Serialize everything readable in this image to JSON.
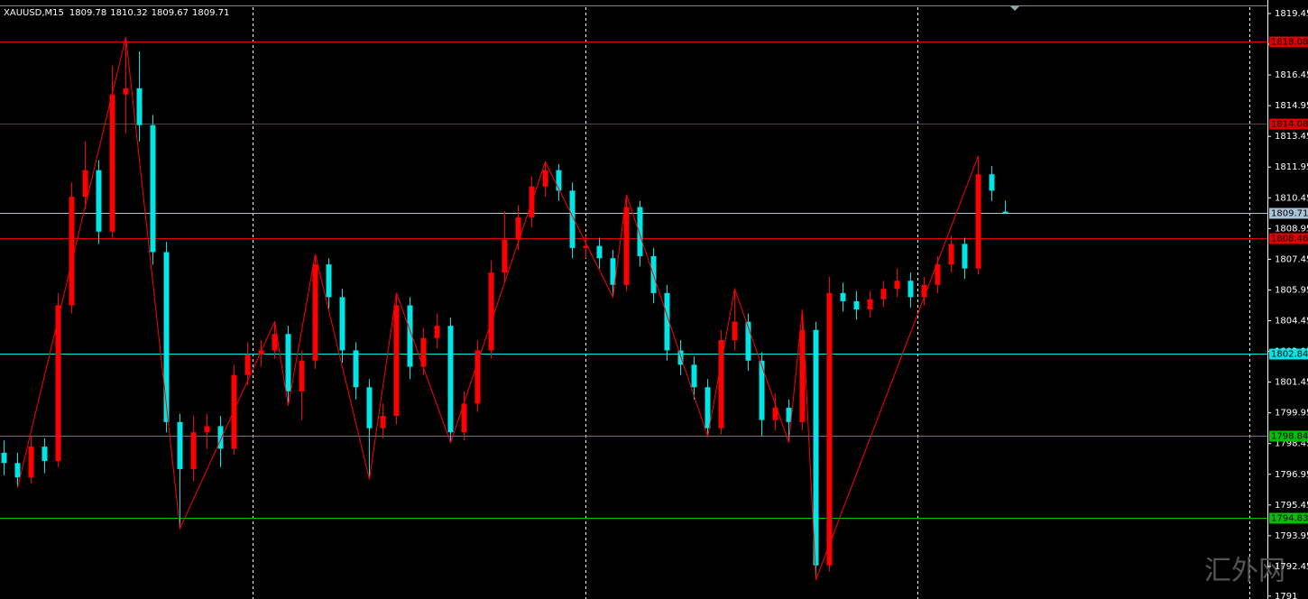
{
  "chart_data": {
    "type": "candlestick",
    "symbol": "XAUUSD,M15",
    "ylim": [
      1790.86,
      1820.11
    ],
    "yticks": [
      1819.45,
      1817.95,
      1816.45,
      1814.95,
      1813.45,
      1811.95,
      1810.45,
      1808.95,
      1807.45,
      1805.95,
      1804.45,
      1802.95,
      1801.45,
      1799.95,
      1798.45,
      1796.95,
      1795.45,
      1793.95,
      1792.45,
      1791.0
    ],
    "up_color": "#ff0000",
    "down_color": "#00e5e5",
    "ohlc": [
      [
        1798.0,
        1798.6,
        1796.9,
        1797.5
      ],
      [
        1797.5,
        1798.0,
        1796.3,
        1796.8
      ],
      [
        1796.8,
        1798.8,
        1796.5,
        1798.3
      ],
      [
        1798.3,
        1798.7,
        1797.0,
        1797.6
      ],
      [
        1797.6,
        1805.8,
        1797.3,
        1805.2
      ],
      [
        1805.2,
        1811.2,
        1804.8,
        1810.5
      ],
      [
        1810.5,
        1813.2,
        1809.9,
        1811.8
      ],
      [
        1811.8,
        1812.3,
        1808.2,
        1808.8
      ],
      [
        1808.8,
        1816.9,
        1808.5,
        1815.5
      ],
      [
        1815.5,
        1818.3,
        1813.6,
        1815.8
      ],
      [
        1815.8,
        1817.6,
        1813.2,
        1814.0
      ],
      [
        1814.0,
        1814.5,
        1807.2,
        1807.8
      ],
      [
        1807.8,
        1808.3,
        1799.0,
        1799.5
      ],
      [
        1799.5,
        1799.9,
        1794.3,
        1797.2
      ],
      [
        1797.2,
        1799.8,
        1796.6,
        1799.0
      ],
      [
        1799.0,
        1799.9,
        1798.2,
        1799.3
      ],
      [
        1799.3,
        1799.8,
        1797.3,
        1798.2
      ],
      [
        1798.2,
        1802.3,
        1797.9,
        1801.8
      ],
      [
        1801.8,
        1803.4,
        1801.3,
        1802.8
      ],
      [
        1802.8,
        1803.5,
        1802.2,
        1803.0
      ],
      [
        1803.0,
        1804.4,
        1802.6,
        1803.8
      ],
      [
        1803.8,
        1804.2,
        1800.3,
        1801.0
      ],
      [
        1801.0,
        1803.0,
        1799.6,
        1802.5
      ],
      [
        1802.5,
        1807.7,
        1802.1,
        1807.2
      ],
      [
        1807.2,
        1807.5,
        1805.0,
        1805.6
      ],
      [
        1805.6,
        1806.0,
        1802.4,
        1803.0
      ],
      [
        1803.0,
        1803.4,
        1800.6,
        1801.2
      ],
      [
        1801.2,
        1801.6,
        1796.7,
        1799.2
      ],
      [
        1799.2,
        1800.4,
        1798.7,
        1799.8
      ],
      [
        1799.8,
        1805.8,
        1799.4,
        1805.2
      ],
      [
        1805.2,
        1805.6,
        1801.6,
        1802.2
      ],
      [
        1802.2,
        1804.1,
        1801.8,
        1803.6
      ],
      [
        1803.6,
        1804.8,
        1803.1,
        1804.2
      ],
      [
        1804.2,
        1804.6,
        1798.5,
        1799.0
      ],
      [
        1799.0,
        1801.0,
        1798.6,
        1800.4
      ],
      [
        1800.4,
        1803.5,
        1800.0,
        1803.0
      ],
      [
        1803.0,
        1807.4,
        1802.6,
        1806.8
      ],
      [
        1806.8,
        1809.8,
        1806.3,
        1808.4
      ],
      [
        1808.4,
        1810.1,
        1807.9,
        1809.5
      ],
      [
        1809.5,
        1811.5,
        1809.0,
        1811.0
      ],
      [
        1811.0,
        1812.2,
        1810.5,
        1811.8
      ],
      [
        1811.8,
        1812.1,
        1810.3,
        1810.8
      ],
      [
        1810.8,
        1811.2,
        1807.5,
        1808.0
      ],
      [
        1808.0,
        1808.6,
        1807.5,
        1808.1
      ],
      [
        1808.1,
        1808.5,
        1807.0,
        1807.5
      ],
      [
        1807.5,
        1807.9,
        1805.6,
        1806.2
      ],
      [
        1806.2,
        1810.6,
        1805.9,
        1810.0
      ],
      [
        1810.0,
        1810.3,
        1807.1,
        1807.6
      ],
      [
        1807.6,
        1808.0,
        1805.3,
        1805.8
      ],
      [
        1805.8,
        1806.2,
        1802.5,
        1803.0
      ],
      [
        1803.0,
        1803.5,
        1801.8,
        1802.3
      ],
      [
        1802.3,
        1802.7,
        1800.6,
        1801.2
      ],
      [
        1801.2,
        1801.6,
        1798.8,
        1799.2
      ],
      [
        1799.2,
        1804.0,
        1798.9,
        1803.5
      ],
      [
        1803.5,
        1806.0,
        1803.0,
        1804.4
      ],
      [
        1804.4,
        1804.8,
        1802.0,
        1802.5
      ],
      [
        1802.5,
        1802.9,
        1798.8,
        1799.6
      ],
      [
        1799.6,
        1800.9,
        1799.1,
        1800.2
      ],
      [
        1800.2,
        1800.6,
        1798.5,
        1799.5
      ],
      [
        1799.5,
        1805.0,
        1799.1,
        1804.0
      ],
      [
        1804.0,
        1804.4,
        1791.8,
        1792.5
      ],
      [
        1792.5,
        1806.6,
        1792.2,
        1805.8
      ],
      [
        1805.8,
        1806.3,
        1804.9,
        1805.4
      ],
      [
        1805.4,
        1805.9,
        1804.5,
        1805.0
      ],
      [
        1805.0,
        1805.9,
        1804.6,
        1805.5
      ],
      [
        1805.5,
        1806.4,
        1805.1,
        1806.0
      ],
      [
        1806.0,
        1807.0,
        1805.6,
        1806.4
      ],
      [
        1806.4,
        1806.8,
        1805.1,
        1805.6
      ],
      [
        1805.6,
        1806.6,
        1805.2,
        1806.2
      ],
      [
        1806.2,
        1807.6,
        1805.8,
        1807.2
      ],
      [
        1807.2,
        1808.6,
        1806.8,
        1808.2
      ],
      [
        1808.2,
        1808.5,
        1806.5,
        1807.0
      ],
      [
        1807.0,
        1812.5,
        1806.7,
        1811.6
      ],
      [
        1811.6,
        1812.0,
        1810.3,
        1810.8
      ],
      [
        1809.78,
        1810.32,
        1809.67,
        1809.71
      ]
    ],
    "zigzag": {
      "color": "#ff0000",
      "x": [
        1,
        9,
        13,
        20,
        21,
        23,
        27,
        29,
        33,
        40,
        45,
        46,
        52,
        54,
        58,
        59,
        60,
        72
      ],
      "values": [
        1796.3,
        1818.3,
        1794.3,
        1804.4,
        1800.3,
        1807.7,
        1796.7,
        1805.8,
        1798.5,
        1812.2,
        1805.6,
        1810.6,
        1798.8,
        1806.0,
        1798.5,
        1805.0,
        1791.8,
        1812.5
      ]
    },
    "levels": [
      {
        "value": 1818.08,
        "color": "#e00000"
      },
      {
        "value": 1814.08,
        "color": "#e00000"
      },
      {
        "value": 1809.71,
        "color": "#a9c4d8"
      },
      {
        "value": 1808.46,
        "color": "#e00000"
      },
      {
        "value": 1802.84,
        "color": "#00e5e5"
      },
      {
        "value": 1798.84,
        "color": "#00c000"
      },
      {
        "value": 1794.83,
        "color": "#00c000"
      }
    ],
    "watermark": "汇外网"
  }
}
